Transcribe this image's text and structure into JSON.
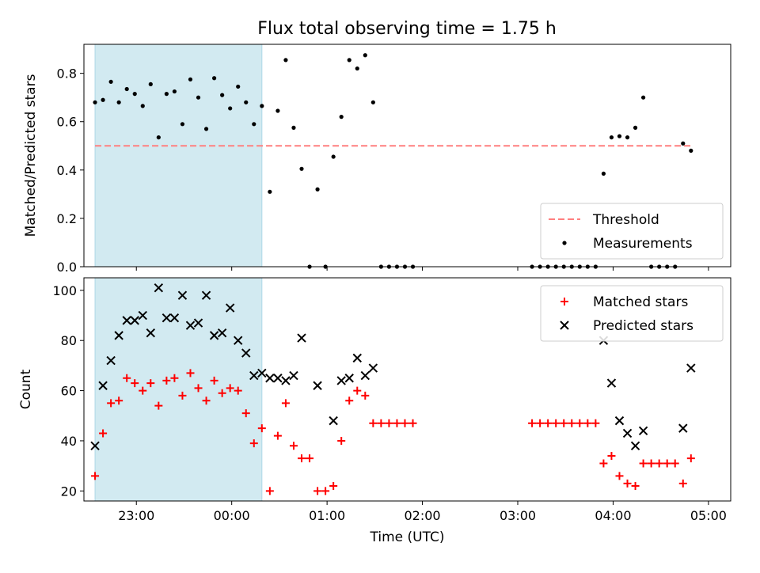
{
  "figure": {
    "title": "Flux total observing time = 1.75 h"
  },
  "chart_data": [
    {
      "type": "scatter",
      "ylabel": "Matched/Predicted stars",
      "xlabel": "",
      "x_axis": "time",
      "xlim": [
        "22:27",
        "05:14"
      ],
      "ylim": [
        0,
        0.92
      ],
      "yticks": [
        0.0,
        0.2,
        0.4,
        0.6,
        0.8
      ],
      "ytick_labels": [
        "0.0",
        "0.2",
        "0.4",
        "0.6",
        "0.8"
      ],
      "xticks": [
        "23:00",
        "00:00",
        "01:00",
        "02:00",
        "03:00",
        "04:00",
        "05:00"
      ],
      "xtick_labels": [
        "",
        "",
        "",
        "",
        "",
        "",
        ""
      ],
      "shaded_region": {
        "x": [
          "22:34",
          "00:19"
        ],
        "color": "#add8e6"
      },
      "threshold": {
        "name": "Threshold",
        "y": 0.5,
        "x": [
          "22:34",
          "04:49"
        ],
        "color": "#ff7f7f",
        "style": "dashed"
      },
      "legend": {
        "placement": "lower-right",
        "entries": [
          "Threshold",
          "Measurements"
        ]
      },
      "series": [
        {
          "name": "Measurements",
          "color": "#000000",
          "marker": "dot",
          "points": [
            [
              "22:34",
              0.68
            ],
            [
              "22:39",
              0.69
            ],
            [
              "22:44",
              0.765
            ],
            [
              "22:49",
              0.68
            ],
            [
              "22:54",
              0.735
            ],
            [
              "22:59",
              0.715
            ],
            [
              "23:04",
              0.665
            ],
            [
              "23:09",
              0.755
            ],
            [
              "23:14",
              0.535
            ],
            [
              "23:19",
              0.715
            ],
            [
              "23:24",
              0.725
            ],
            [
              "23:29",
              0.59
            ],
            [
              "23:34",
              0.775
            ],
            [
              "23:39",
              0.7
            ],
            [
              "23:44",
              0.57
            ],
            [
              "23:49",
              0.78
            ],
            [
              "23:54",
              0.71
            ],
            [
              "23:59",
              0.655
            ],
            [
              "00:04",
              0.745
            ],
            [
              "00:09",
              0.68
            ],
            [
              "00:14",
              0.59
            ],
            [
              "00:19",
              0.665
            ],
            [
              "00:24",
              0.31
            ],
            [
              "00:29",
              0.645
            ],
            [
              "00:34",
              0.855
            ],
            [
              "00:39",
              0.575
            ],
            [
              "00:44",
              0.405
            ],
            [
              "00:49",
              0.0
            ],
            [
              "00:54",
              0.32
            ],
            [
              "00:59",
              0.0
            ],
            [
              "01:04",
              0.455
            ],
            [
              "01:09",
              0.62
            ],
            [
              "01:14",
              0.855
            ],
            [
              "01:19",
              0.82
            ],
            [
              "01:24",
              0.875
            ],
            [
              "01:29",
              0.68
            ],
            [
              "01:34",
              0.0
            ],
            [
              "01:39",
              0.0
            ],
            [
              "01:44",
              0.0
            ],
            [
              "01:49",
              0.0
            ],
            [
              "01:54",
              0.0
            ],
            [
              "03:09",
              0.0
            ],
            [
              "03:14",
              0.0
            ],
            [
              "03:19",
              0.0
            ],
            [
              "03:24",
              0.0
            ],
            [
              "03:29",
              0.0
            ],
            [
              "03:34",
              0.0
            ],
            [
              "03:39",
              0.0
            ],
            [
              "03:44",
              0.0
            ],
            [
              "03:49",
              0.0
            ],
            [
              "03:54",
              0.385
            ],
            [
              "03:59",
              0.535
            ],
            [
              "04:04",
              0.54
            ],
            [
              "04:09",
              0.535
            ],
            [
              "04:14",
              0.575
            ],
            [
              "04:19",
              0.7
            ],
            [
              "04:24",
              0.0
            ],
            [
              "04:29",
              0.0
            ],
            [
              "04:34",
              0.0
            ],
            [
              "04:39",
              0.0
            ],
            [
              "04:44",
              0.51
            ],
            [
              "04:49",
              0.48
            ]
          ]
        }
      ]
    },
    {
      "type": "scatter",
      "ylabel": "Count",
      "xlabel": "Time (UTC)",
      "x_axis": "time",
      "xlim": [
        "22:27",
        "05:14"
      ],
      "ylim": [
        16,
        105
      ],
      "yticks": [
        20,
        40,
        60,
        80,
        100
      ],
      "ytick_labels": [
        "20",
        "40",
        "60",
        "80",
        "100"
      ],
      "xticks": [
        "23:00",
        "00:00",
        "01:00",
        "02:00",
        "03:00",
        "04:00",
        "05:00"
      ],
      "xtick_labels": [
        "23:00",
        "00:00",
        "01:00",
        "02:00",
        "03:00",
        "04:00",
        "05:00"
      ],
      "shaded_region": {
        "x": [
          "22:34",
          "00:19"
        ],
        "color": "#add8e6"
      },
      "legend": {
        "placement": "upper-right",
        "entries": [
          "Matched stars",
          "Predicted stars"
        ]
      },
      "series": [
        {
          "name": "Matched stars",
          "color": "#ff0000",
          "marker": "plus",
          "points": [
            [
              "22:34",
              26
            ],
            [
              "22:39",
              43
            ],
            [
              "22:44",
              55
            ],
            [
              "22:49",
              56
            ],
            [
              "22:54",
              65
            ],
            [
              "22:59",
              63
            ],
            [
              "23:04",
              60
            ],
            [
              "23:09",
              63
            ],
            [
              "23:14",
              54
            ],
            [
              "23:19",
              64
            ],
            [
              "23:24",
              65
            ],
            [
              "23:29",
              58
            ],
            [
              "23:34",
              67
            ],
            [
              "23:39",
              61
            ],
            [
              "23:44",
              56
            ],
            [
              "23:49",
              64
            ],
            [
              "23:54",
              59
            ],
            [
              "23:59",
              61
            ],
            [
              "00:04",
              60
            ],
            [
              "00:09",
              51
            ],
            [
              "00:14",
              39
            ],
            [
              "00:19",
              45
            ],
            [
              "00:24",
              20
            ],
            [
              "00:29",
              42
            ],
            [
              "00:34",
              55
            ],
            [
              "00:39",
              38
            ],
            [
              "00:44",
              33
            ],
            [
              "00:49",
              33
            ],
            [
              "00:54",
              20
            ],
            [
              "00:59",
              20
            ],
            [
              "01:04",
              22
            ],
            [
              "01:09",
              40
            ],
            [
              "01:14",
              56
            ],
            [
              "01:19",
              60
            ],
            [
              "01:24",
              58
            ],
            [
              "01:29",
              47
            ],
            [
              "01:34",
              47
            ],
            [
              "01:39",
              47
            ],
            [
              "01:44",
              47
            ],
            [
              "01:49",
              47
            ],
            [
              "01:54",
              47
            ],
            [
              "03:09",
              47
            ],
            [
              "03:14",
              47
            ],
            [
              "03:19",
              47
            ],
            [
              "03:24",
              47
            ],
            [
              "03:29",
              47
            ],
            [
              "03:34",
              47
            ],
            [
              "03:39",
              47
            ],
            [
              "03:44",
              47
            ],
            [
              "03:49",
              47
            ],
            [
              "03:54",
              31
            ],
            [
              "03:59",
              34
            ],
            [
              "04:04",
              26
            ],
            [
              "04:09",
              23
            ],
            [
              "04:14",
              22
            ],
            [
              "04:19",
              31
            ],
            [
              "04:24",
              31
            ],
            [
              "04:29",
              31
            ],
            [
              "04:34",
              31
            ],
            [
              "04:39",
              31
            ],
            [
              "04:44",
              23
            ],
            [
              "04:49",
              33
            ]
          ]
        },
        {
          "name": "Predicted stars",
          "color": "#000000",
          "marker": "x",
          "points": [
            [
              "22:34",
              38
            ],
            [
              "22:39",
              62
            ],
            [
              "22:44",
              72
            ],
            [
              "22:49",
              82
            ],
            [
              "22:54",
              88
            ],
            [
              "22:59",
              88
            ],
            [
              "23:04",
              90
            ],
            [
              "23:09",
              83
            ],
            [
              "23:14",
              101
            ],
            [
              "23:19",
              89
            ],
            [
              "23:24",
              89
            ],
            [
              "23:29",
              98
            ],
            [
              "23:34",
              86
            ],
            [
              "23:39",
              87
            ],
            [
              "23:44",
              98
            ],
            [
              "23:49",
              82
            ],
            [
              "23:54",
              83
            ],
            [
              "23:59",
              93
            ],
            [
              "00:04",
              80
            ],
            [
              "00:09",
              75
            ],
            [
              "00:14",
              66
            ],
            [
              "00:19",
              67
            ],
            [
              "00:24",
              65
            ],
            [
              "00:29",
              65
            ],
            [
              "00:34",
              64
            ],
            [
              "00:39",
              66
            ],
            [
              "00:44",
              81
            ],
            [
              "00:54",
              62
            ],
            [
              "01:04",
              48
            ],
            [
              "01:09",
              64
            ],
            [
              "01:14",
              65
            ],
            [
              "01:19",
              73
            ],
            [
              "01:24",
              66
            ],
            [
              "01:29",
              69
            ],
            [
              "03:54",
              80
            ],
            [
              "03:59",
              63
            ],
            [
              "04:04",
              48
            ],
            [
              "04:09",
              43
            ],
            [
              "04:14",
              38
            ],
            [
              "04:19",
              44
            ],
            [
              "04:44",
              45
            ],
            [
              "04:49",
              69
            ]
          ]
        }
      ]
    }
  ]
}
